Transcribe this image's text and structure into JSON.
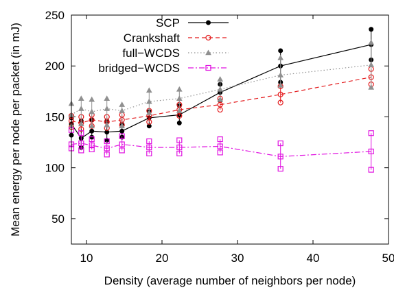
{
  "chart_data": {
    "type": "line",
    "xlabel": "Density (average number of neighbors per node)",
    "ylabel": "Mean energy per node per packet (in mJ)",
    "xlim": [
      8,
      50
    ],
    "ylim": [
      25,
      250
    ],
    "xticks": [
      10,
      20,
      30,
      40,
      50
    ],
    "yticks": [
      50,
      100,
      150,
      200,
      250
    ],
    "legend_position": "top-right",
    "x": [
      8,
      9.3,
      10.7,
      12.7,
      14.7,
      18.3,
      22.3,
      27.7,
      35.7,
      47.7
    ],
    "series": [
      {
        "name": "SCP",
        "color": "#000000",
        "line": "solid",
        "marker": "filled-circle",
        "values": [
          143,
          129,
          136,
          135,
          136,
          149,
          152,
          174,
          200,
          221
        ],
        "err_low": [
          132,
          120,
          130,
          127,
          130,
          141,
          144,
          166,
          184,
          206
        ],
        "err_high": [
          149,
          146,
          147,
          146,
          143,
          155,
          161,
          182,
          215,
          236
        ]
      },
      {
        "name": "Crankshaft",
        "color": "#e31a1c",
        "line": "dashed",
        "marker": "open-circle",
        "values": [
          146,
          144,
          147,
          145,
          147,
          151,
          157,
          162,
          172,
          189
        ],
        "err_low": [
          140,
          138,
          141,
          139,
          142,
          145,
          151,
          157,
          164,
          182
        ],
        "err_high": [
          151,
          150,
          152,
          150,
          152,
          156,
          162,
          168,
          180,
          197
        ]
      },
      {
        "name": "full−WCDS",
        "color": "#909090",
        "line": "dotted",
        "marker": "triangle",
        "values": [
          152,
          158,
          155,
          158,
          156,
          165,
          168,
          177,
          191,
          201
        ],
        "err_low": [
          141,
          143,
          141,
          142,
          141,
          154,
          156,
          167,
          181,
          179
        ],
        "err_high": [
          163,
          168,
          167,
          168,
          162,
          176,
          177,
          187,
          208,
          223
        ]
      },
      {
        "name": "bridged−WCDS",
        "color": "#e010e0",
        "line": "dashdot",
        "marker": "open-square",
        "values": [
          123,
          124,
          122,
          119,
          123,
          120,
          120,
          121,
          111,
          116
        ],
        "err_low": [
          119,
          117,
          118,
          113,
          117,
          114,
          114,
          115,
          99,
          98
        ],
        "err_high": [
          137,
          134,
          128,
          126,
          131,
          126,
          127,
          128,
          124,
          134
        ]
      }
    ]
  }
}
